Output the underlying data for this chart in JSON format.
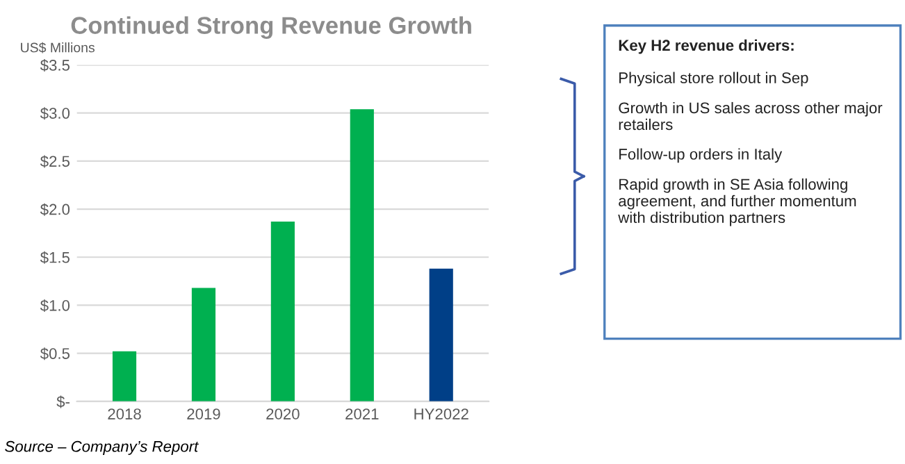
{
  "chart_data": [
    {
      "type": "bar",
      "title": "Continued Strong Revenue Growth",
      "ylabel": "US$ Millions",
      "categories": [
        "2018",
        "2019",
        "2020",
        "2021",
        "HY2022"
      ],
      "values": [
        0.52,
        1.18,
        1.87,
        3.04,
        1.38
      ],
      "colors": [
        "#00b050",
        "#00b050",
        "#00b050",
        "#00b050",
        "#003f87"
      ],
      "ylim": [
        0,
        3.5
      ],
      "yticks": [
        {
          "value": 0,
          "label": "$-"
        },
        {
          "value": 0.5,
          "label": "$0.5"
        },
        {
          "value": 1.0,
          "label": "$1.0"
        },
        {
          "value": 1.5,
          "label": "$1.5"
        },
        {
          "value": 2.0,
          "label": "$2.0"
        },
        {
          "value": 2.5,
          "label": "$2.5"
        },
        {
          "value": 3.0,
          "label": "$3.0"
        },
        {
          "value": 3.5,
          "label": "$3.5"
        }
      ],
      "grid": "y",
      "annotations": [
        "Source – Company’s Report"
      ]
    },
    {
      "type": "other",
      "title": "Key H2 revenue drivers:",
      "annotations": [
        "Physical store rollout in Sep",
        "Growth in US sales across other major retailers",
        "Follow-up orders in Italy",
        "Rapid growth in SE Asia following agreement, and further momentum with distribution partners"
      ]
    }
  ]
}
